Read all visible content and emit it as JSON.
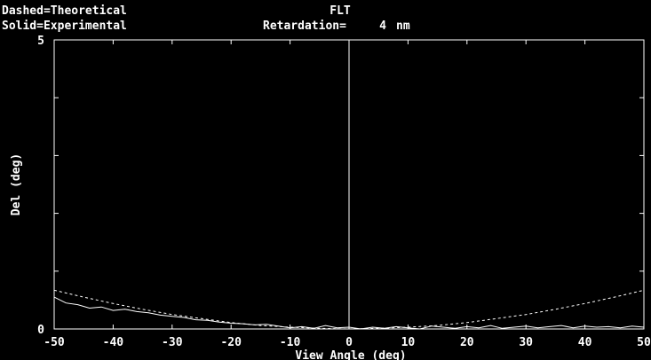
{
  "header": {
    "legend_dashed": "Dashed=Theoretical",
    "legend_solid": "Solid=Experimental",
    "title": "FLT",
    "retardation_label": "Retardation=",
    "retardation_value": "4",
    "retardation_unit": "nm"
  },
  "colors": {
    "background": "#000000",
    "foreground": "#ffffff"
  },
  "chart_data": {
    "type": "line",
    "title": "FLT",
    "xlabel": "View Angle (deg)",
    "ylabel": "Del (deg)",
    "xlim": [
      -50,
      50
    ],
    "ylim": [
      0,
      5
    ],
    "xticks": [
      -50,
      -40,
      -30,
      -20,
      -10,
      0,
      10,
      20,
      30,
      40,
      50
    ],
    "xtick_labels": [
      "-50",
      "-40",
      "-30",
      "-20",
      "-10",
      "0",
      "10",
      "20",
      "30",
      "40",
      "50"
    ],
    "yticks": [
      0,
      5
    ],
    "ytick_labels": [
      "0",
      "5"
    ],
    "vertical_line_at": 0,
    "series": [
      {
        "name": "Theoretical",
        "style": "dashed",
        "x": [
          -50,
          -45,
          -40,
          -35,
          -30,
          -25,
          -20,
          -15,
          -10,
          -5,
          0,
          5,
          10,
          15,
          20,
          25,
          30,
          35,
          40,
          45,
          50
        ],
        "y": [
          0.67,
          0.55,
          0.44,
          0.34,
          0.25,
          0.18,
          0.11,
          0.06,
          0.03,
          0.01,
          0.0,
          0.01,
          0.03,
          0.06,
          0.11,
          0.18,
          0.25,
          0.34,
          0.44,
          0.55,
          0.67
        ]
      },
      {
        "name": "Experimental",
        "style": "solid",
        "x": [
          -50,
          -48,
          -46,
          -44,
          -42,
          -40,
          -38,
          -36,
          -34,
          -32,
          -30,
          -28,
          -26,
          -24,
          -22,
          -20,
          -18,
          -16,
          -14,
          -12,
          -10,
          -8,
          -6,
          -4,
          -2,
          0,
          2,
          4,
          6,
          8,
          10,
          12,
          14,
          16,
          18,
          20,
          22,
          24,
          26,
          28,
          30,
          32,
          34,
          36,
          38,
          40,
          42,
          44,
          46,
          48,
          50
        ],
        "y": [
          0.55,
          0.45,
          0.42,
          0.36,
          0.38,
          0.32,
          0.34,
          0.3,
          0.28,
          0.24,
          0.22,
          0.2,
          0.16,
          0.15,
          0.12,
          0.1,
          0.09,
          0.07,
          0.08,
          0.05,
          0.02,
          0.04,
          0.01,
          0.06,
          0.02,
          0.03,
          0.0,
          0.03,
          0.01,
          0.04,
          0.02,
          0.0,
          0.05,
          0.03,
          0.01,
          0.04,
          0.02,
          0.06,
          0.01,
          0.03,
          0.05,
          0.02,
          0.04,
          0.06,
          0.02,
          0.05,
          0.03,
          0.04,
          0.02,
          0.05,
          0.03
        ]
      }
    ]
  }
}
